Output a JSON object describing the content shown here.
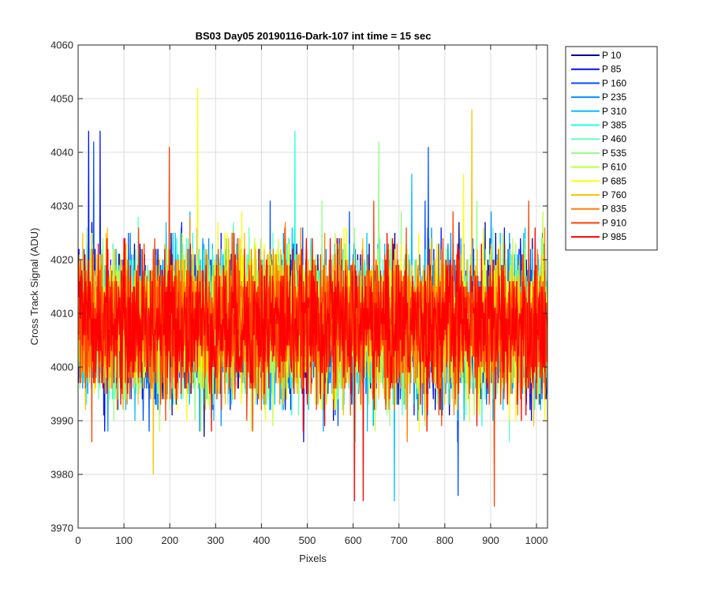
{
  "chart_data": {
    "type": "line",
    "title": "BS03 Day05 20190116-Dark-107 int time = 15 sec",
    "xlabel": "Pixels",
    "ylabel": "Cross Track Signal (ADU)",
    "xlim": [
      0,
      1024
    ],
    "ylim": [
      3970,
      4060
    ],
    "xticks": [
      0,
      100,
      200,
      300,
      400,
      500,
      600,
      700,
      800,
      900,
      1000
    ],
    "yticks": [
      3970,
      3980,
      3990,
      4000,
      4010,
      4020,
      4030,
      4040,
      4050,
      4060
    ],
    "grid": true,
    "legend_position": "outside-right-top",
    "series_stats": {
      "center": 4008,
      "noise_sd": 6.5,
      "points_per_series": 1024
    },
    "series": [
      {
        "name": "P 10",
        "color": "#00008f"
      },
      {
        "name": "P 85",
        "color": "#0010ff"
      },
      {
        "name": "P 160",
        "color": "#0050ff"
      },
      {
        "name": "P 235",
        "color": "#0090ff"
      },
      {
        "name": "P 310",
        "color": "#00c0ff"
      },
      {
        "name": "P 385",
        "color": "#20ffdf"
      },
      {
        "name": "P 460",
        "color": "#60ffbf"
      },
      {
        "name": "P 535",
        "color": "#90ff80"
      },
      {
        "name": "P 610",
        "color": "#c0ff40"
      },
      {
        "name": "P 685",
        "color": "#ffff00"
      },
      {
        "name": "P 760",
        "color": "#ffc000"
      },
      {
        "name": "P 835",
        "color": "#ff8000"
      },
      {
        "name": "P 910",
        "color": "#ff4000"
      },
      {
        "name": "P 985",
        "color": "#ff0000"
      }
    ],
    "spikes": [
      {
        "series": "P 85",
        "x": 22,
        "y": 4044
      },
      {
        "series": "P 85",
        "x": 47,
        "y": 4044
      },
      {
        "series": "P 160",
        "x": 33,
        "y": 4042
      },
      {
        "series": "P 685",
        "x": 260,
        "y": 4052
      },
      {
        "series": "P 910",
        "x": 198,
        "y": 4041
      },
      {
        "series": "P 385",
        "x": 472,
        "y": 4044
      },
      {
        "series": "P 535",
        "x": 655,
        "y": 4042
      },
      {
        "series": "P 160",
        "x": 763,
        "y": 4041
      },
      {
        "series": "P 760",
        "x": 858,
        "y": 4048
      },
      {
        "series": "P 985",
        "x": 602,
        "y": 3975
      },
      {
        "series": "P 985",
        "x": 621,
        "y": 3975
      },
      {
        "series": "P 910",
        "x": 907,
        "y": 3974
      },
      {
        "series": "P 160",
        "x": 828,
        "y": 3976
      },
      {
        "series": "P 310",
        "x": 689,
        "y": 3975
      },
      {
        "series": "P 760",
        "x": 163,
        "y": 3980
      }
    ]
  }
}
